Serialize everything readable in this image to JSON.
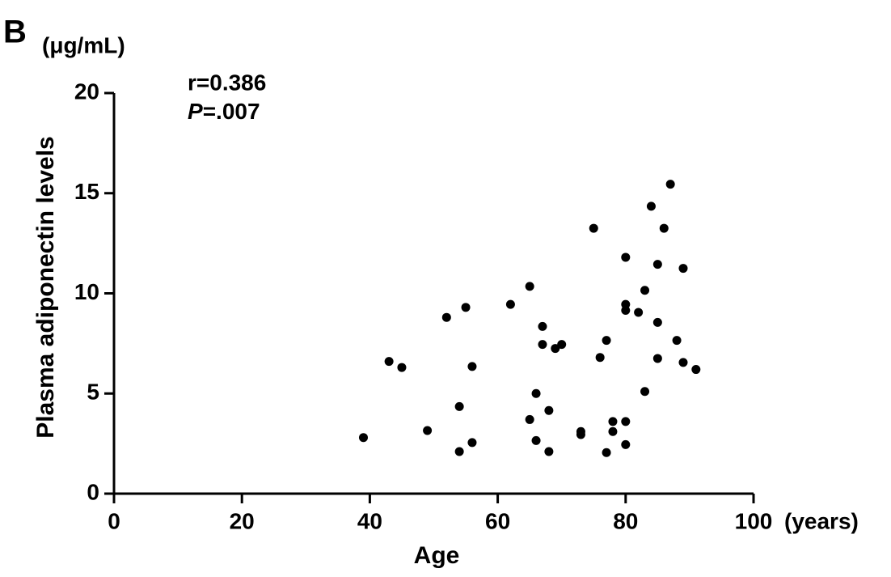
{
  "chart_data": {
    "type": "scatter",
    "panel_label": "B",
    "y_unit": "(μg/mL)",
    "x_unit": "(years)",
    "xlabel": "Age",
    "ylabel": "Plasma adiponectin levels",
    "annotations": [
      "r=0.386",
      "P=.007"
    ],
    "color": "#000000",
    "xlim": [
      0,
      100
    ],
    "ylim": [
      0,
      20
    ],
    "xticks": [
      0,
      20,
      40,
      60,
      80,
      100
    ],
    "yticks": [
      0,
      5,
      10,
      15,
      20
    ],
    "x": [
      39,
      43,
      45,
      49,
      52,
      54,
      54,
      55,
      56,
      56,
      62,
      65,
      65,
      66,
      66,
      67,
      67,
      68,
      68,
      69,
      70,
      73,
      73,
      75,
      76,
      77,
      77,
      78,
      78,
      80,
      80,
      80,
      80,
      80,
      82,
      83,
      83,
      84,
      85,
      85,
      85,
      86,
      87,
      88,
      89,
      89,
      91
    ],
    "values": [
      2.8,
      6.6,
      6.3,
      3.15,
      8.8,
      4.35,
      2.1,
      9.3,
      6.35,
      2.55,
      9.45,
      10.35,
      3.7,
      5.0,
      2.65,
      8.35,
      7.45,
      4.15,
      2.1,
      7.25,
      7.45,
      3.1,
      2.95,
      13.25,
      6.8,
      7.65,
      2.05,
      3.6,
      3.1,
      11.8,
      9.45,
      9.15,
      3.6,
      2.45,
      9.05,
      10.15,
      5.1,
      14.35,
      8.55,
      11.45,
      6.75,
      13.25,
      15.45,
      7.65,
      11.25,
      6.55,
      6.2
    ]
  }
}
